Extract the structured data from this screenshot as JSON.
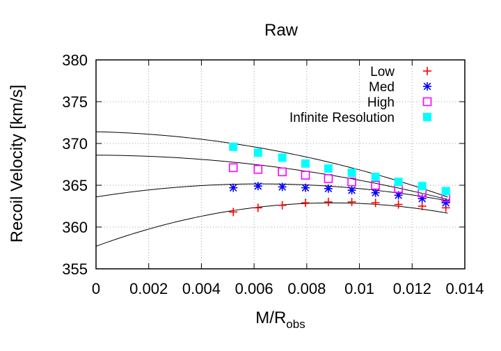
{
  "chart_data": {
    "type": "scatter",
    "title": "Raw",
    "xlabel": "M/R",
    "xlabel_sub": "obs",
    "ylabel": "Recoil Velocity [km/s]",
    "xlim": [
      0,
      0.014
    ],
    "ylim": [
      355,
      380
    ],
    "xticks": [
      0,
      0.002,
      0.004,
      0.006,
      0.008,
      0.01,
      0.012,
      0.014
    ],
    "xtick_labels": [
      "0",
      "0.002",
      "0.004",
      "0.006",
      "0.008",
      "0.01",
      "0.012",
      "0.014"
    ],
    "yticks": [
      355,
      360,
      365,
      370,
      375,
      380
    ],
    "ytick_labels": [
      "355",
      "360",
      "365",
      "370",
      "375",
      "380"
    ],
    "grid": true,
    "legend_position": "top-right",
    "x": [
      0.00521,
      0.00615,
      0.00707,
      0.00795,
      0.00882,
      0.00971,
      0.01061,
      0.01148,
      0.01238,
      0.01328
    ],
    "series": [
      {
        "name": "Low",
        "marker": "plus",
        "color": "#ff0000",
        "values": [
          361.8,
          362.3,
          362.6,
          362.9,
          363.0,
          363.0,
          362.9,
          362.7,
          362.5,
          362.3
        ],
        "fit": [
          357.7,
          1156,
          -64400
        ]
      },
      {
        "name": "Med",
        "marker": "asterisk",
        "color": "#0000ff",
        "values": [
          364.7,
          364.9,
          364.8,
          364.7,
          364.6,
          364.4,
          364.1,
          363.8,
          363.4,
          362.9
        ],
        "fit": [
          363.6,
          500,
          -40000
        ]
      },
      {
        "name": "High",
        "marker": "open-square",
        "color": "#ff00ff",
        "values": [
          367.1,
          366.9,
          366.6,
          366.2,
          365.8,
          365.4,
          365.0,
          364.6,
          364.1,
          363.5
        ],
        "fit": [
          368.6,
          -10,
          -29000
        ]
      },
      {
        "name": "Infinite Resolution",
        "marker": "filled-square",
        "color": "#00ffff",
        "values": [
          369.6,
          368.9,
          368.3,
          367.6,
          367.0,
          366.5,
          366.0,
          365.4,
          364.9,
          364.3
        ],
        "fit": [
          371.4,
          -70,
          -38600
        ]
      }
    ]
  }
}
